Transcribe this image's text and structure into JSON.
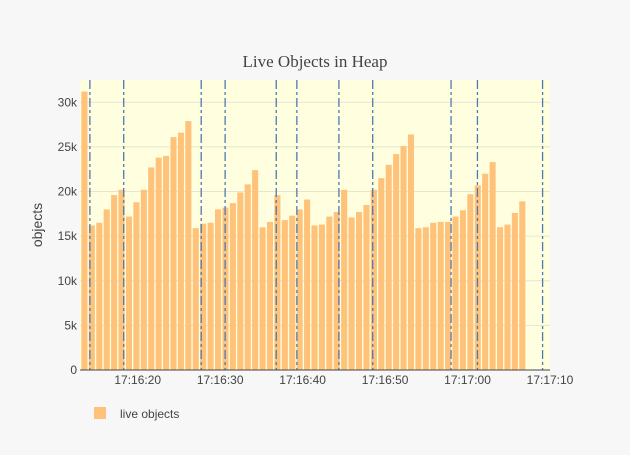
{
  "chart_data": {
    "type": "bar",
    "title": "Live Objects in Heap",
    "xlabel": "",
    "ylabel": "objects",
    "ylim": [
      0,
      32500
    ],
    "y_ticks": [
      0,
      5000,
      10000,
      15000,
      20000,
      25000,
      30000
    ],
    "y_tick_labels": [
      "0",
      "5k",
      "10k",
      "15k",
      "20k",
      "25k",
      "30k"
    ],
    "x_range": [
      "17:16:13",
      "17:17:10"
    ],
    "x_tick_labels": [
      "17:16:20",
      "17:16:30",
      "17:16:40",
      "17:16:50",
      "17:17:00",
      "17:17:10"
    ],
    "bar_interval_s": 0.9,
    "series": [
      {
        "name": "live objects",
        "color": "#ffc27a",
        "values": [
          31200,
          16200,
          16500,
          18000,
          19600,
          20200,
          17200,
          18800,
          20200,
          22700,
          23800,
          24000,
          26100,
          26600,
          27900,
          15900,
          16400,
          16500,
          18000,
          18200,
          18700,
          19900,
          20800,
          22400,
          16000,
          16600,
          19600,
          16800,
          17300,
          18000,
          19100,
          16200,
          16300,
          17200,
          17700,
          20200,
          17100,
          17700,
          18500,
          20200,
          21500,
          23000,
          24200,
          25100,
          26400,
          15900,
          16000,
          16500,
          16600,
          16600,
          17200,
          17900,
          19700,
          20700,
          22000,
          23300,
          16000,
          16300,
          17600,
          18900
        ]
      }
    ],
    "gc_event_times": [
      "17:16:14.2",
      "17:16:18.3",
      "17:16:27.7",
      "17:16:30.6",
      "17:16:36.8",
      "17:16:39.3",
      "17:16:44.4",
      "17:16:48.5",
      "17:16:58.0",
      "17:17:01.2",
      "17:17:09.1"
    ],
    "plot_background": "#ffffe0",
    "event_line_color": "#4a7ab5",
    "grid": true,
    "legend_position": "bottom-left"
  }
}
